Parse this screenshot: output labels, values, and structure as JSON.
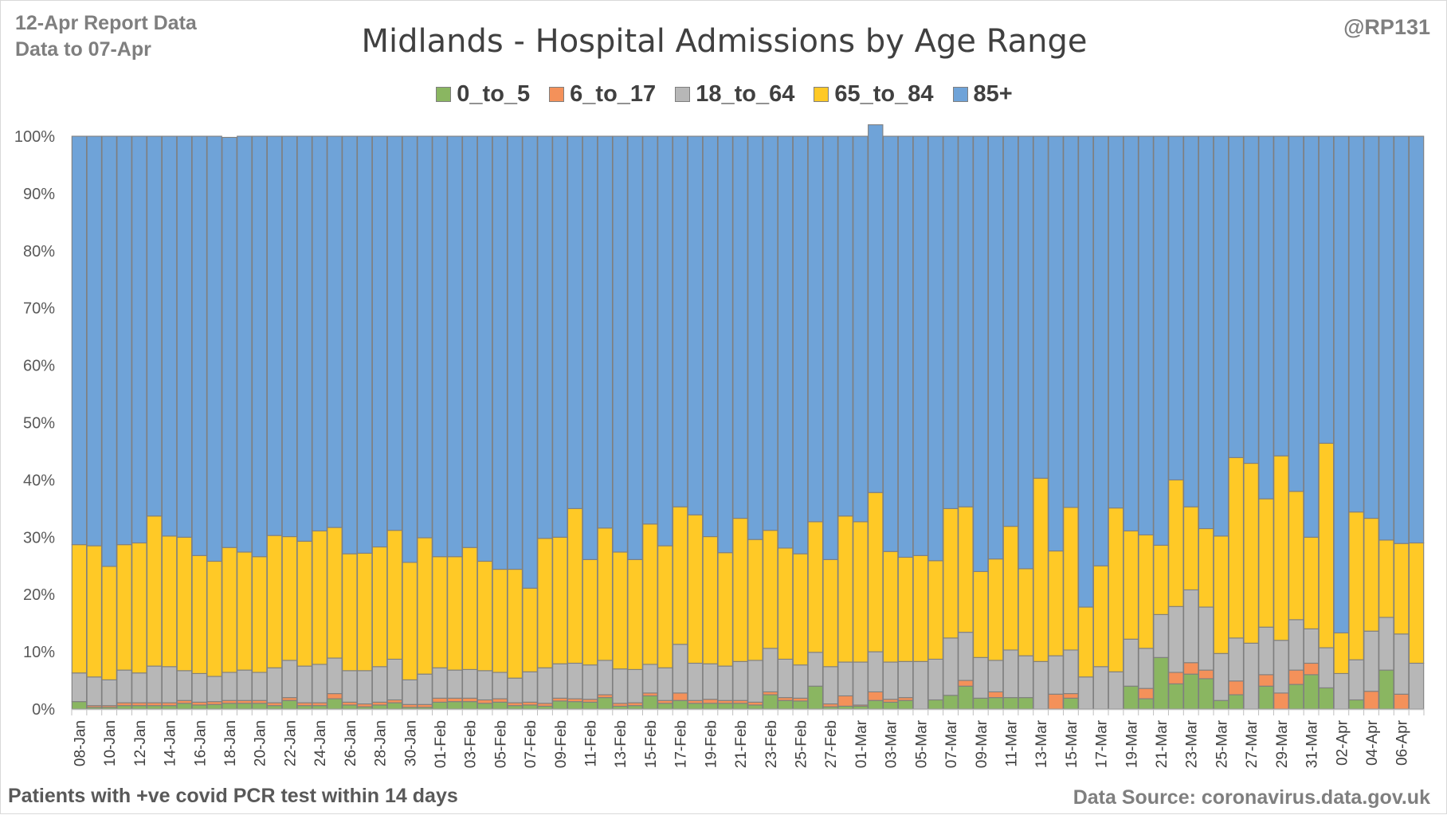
{
  "header": {
    "report_line1": "12-Apr Report Data",
    "report_line2": "Data to 07-Apr",
    "handle": "@RP131"
  },
  "footer": {
    "note": "Patients with  +ve covid PCR test within 14 days",
    "source": "Data Source: coronavirus.data.gov.uk"
  },
  "chart_data": {
    "type": "bar",
    "stacked": true,
    "percent_stacked": true,
    "title": "Midlands - Hospital Admissions by Age Range",
    "xlabel": "",
    "ylabel": "",
    "ylim": [
      0,
      100
    ],
    "y_ticks": [
      "0%",
      "10%",
      "20%",
      "30%",
      "40%",
      "50%",
      "60%",
      "70%",
      "80%",
      "90%",
      "100%"
    ],
    "grid": false,
    "legend_position": "top",
    "colors": {
      "0_to_5": "#8ab661",
      "6_to_17": "#f4915a",
      "18_to_64": "#b7b7b7",
      "65_to_84": "#ffc926",
      "85+": "#6fa3d8"
    },
    "categories": [
      "08-Jan",
      "09-Jan",
      "10-Jan",
      "11-Jan",
      "12-Jan",
      "13-Jan",
      "14-Jan",
      "15-Jan",
      "16-Jan",
      "17-Jan",
      "18-Jan",
      "19-Jan",
      "20-Jan",
      "21-Jan",
      "22-Jan",
      "23-Jan",
      "24-Jan",
      "25-Jan",
      "26-Jan",
      "27-Jan",
      "28-Jan",
      "29-Jan",
      "30-Jan",
      "31-Jan",
      "01-Feb",
      "02-Feb",
      "03-Feb",
      "04-Feb",
      "05-Feb",
      "06-Feb",
      "07-Feb",
      "08-Feb",
      "09-Feb",
      "10-Feb",
      "11-Feb",
      "12-Feb",
      "13-Feb",
      "14-Feb",
      "15-Feb",
      "16-Feb",
      "17-Feb",
      "18-Feb",
      "19-Feb",
      "20-Feb",
      "21-Feb",
      "22-Feb",
      "23-Feb",
      "24-Feb",
      "25-Feb",
      "26-Feb",
      "27-Feb",
      "28-Feb",
      "01-Mar",
      "02-Mar",
      "03-Mar",
      "04-Mar",
      "05-Mar",
      "06-Mar",
      "07-Mar",
      "08-Mar",
      "09-Mar",
      "10-Mar",
      "11-Mar",
      "12-Mar",
      "13-Mar",
      "14-Mar",
      "15-Mar",
      "16-Mar",
      "17-Mar",
      "18-Mar",
      "19-Mar",
      "20-Mar",
      "21-Mar",
      "22-Mar",
      "23-Mar",
      "24-Mar",
      "25-Mar",
      "26-Mar",
      "27-Mar",
      "28-Mar",
      "29-Mar",
      "30-Mar",
      "31-Mar",
      "01-Apr",
      "02-Apr",
      "03-Apr",
      "04-Apr",
      "05-Apr",
      "06-Apr",
      "07-Apr"
    ],
    "x_tick_labels": [
      "08-Jan",
      "10-Jan",
      "12-Jan",
      "14-Jan",
      "16-Jan",
      "18-Jan",
      "20-Jan",
      "22-Jan",
      "24-Jan",
      "26-Jan",
      "28-Jan",
      "30-Jan",
      "01-Feb",
      "03-Feb",
      "05-Feb",
      "07-Feb",
      "09-Feb",
      "11-Feb",
      "13-Feb",
      "15-Feb",
      "17-Feb",
      "19-Feb",
      "21-Feb",
      "23-Feb",
      "25-Feb",
      "27-Feb",
      "01-Mar",
      "03-Mar",
      "05-Mar",
      "07-Mar",
      "09-Mar",
      "11-Mar",
      "13-Mar",
      "15-Mar",
      "17-Mar",
      "19-Mar",
      "21-Mar",
      "23-Mar",
      "25-Mar",
      "27-Mar",
      "29-Mar",
      "31-Mar",
      "02-Apr",
      "04-Apr",
      "06-Apr"
    ],
    "series": [
      {
        "name": "0_to_5",
        "values": [
          1.3,
          0.3,
          0.3,
          0.6,
          0.6,
          0.6,
          0.6,
          1.0,
          0.7,
          0.8,
          1.0,
          1.0,
          1.0,
          0.6,
          1.5,
          0.6,
          0.6,
          1.8,
          0.7,
          0.4,
          0.7,
          1.1,
          0.3,
          0.3,
          1.2,
          1.3,
          1.3,
          1.0,
          1.2,
          0.6,
          0.7,
          0.5,
          1.4,
          1.3,
          1.2,
          2.0,
          0.5,
          0.6,
          2.3,
          1.0,
          1.5,
          1.0,
          1.0,
          1.0,
          1.0,
          0.7,
          2.5,
          1.5,
          1.4,
          4.0,
          0.4,
          0.5,
          0.5,
          1.5,
          1.2,
          1.5,
          0,
          1.6,
          2.4,
          4.0,
          1.9,
          2.0,
          2.0,
          2.0,
          0,
          0,
          1.9,
          0,
          0,
          0,
          4.0,
          1.8,
          9.0,
          4.4,
          6.1,
          5.3,
          1.5,
          2.5,
          0,
          4.0,
          0,
          4.3,
          6.0,
          3.7,
          0,
          1.6,
          0,
          6.8,
          0,
          0
        ]
      },
      {
        "name": "6_to_17",
        "values": [
          0,
          0.3,
          0.3,
          0.5,
          0.5,
          0.5,
          0.5,
          0.5,
          0.5,
          0.5,
          0.5,
          0.5,
          0.5,
          0.5,
          0.5,
          0.5,
          0.5,
          0.9,
          0.5,
          0.5,
          0.5,
          0.5,
          0.5,
          0.5,
          0.7,
          0.6,
          0.6,
          0.6,
          0.6,
          0.5,
          0.5,
          0.5,
          0.5,
          0.5,
          0.5,
          0.5,
          0.5,
          0.5,
          0.5,
          0.5,
          1.3,
          0.5,
          0.7,
          0.5,
          0.5,
          0.5,
          0.5,
          0.5,
          0.5,
          0,
          0.5,
          1.8,
          0.2,
          1.5,
          0.5,
          0.5,
          0,
          0,
          0,
          1.0,
          0,
          1.0,
          0,
          0,
          0,
          2.6,
          0.8,
          0,
          0,
          0,
          0,
          1.8,
          0,
          2.0,
          2.0,
          1.5,
          0,
          2.4,
          0,
          2.0,
          2.8,
          2.5,
          2.0,
          0,
          0,
          0,
          3.1,
          0,
          2.6,
          0
        ]
      },
      {
        "name": "18_to_64",
        "values": [
          5.0,
          5.0,
          4.5,
          5.7,
          5.2,
          6.4,
          6.3,
          5.2,
          5.0,
          4.4,
          4.9,
          5.3,
          4.9,
          6.1,
          6.5,
          6.4,
          6.7,
          6.2,
          5.5,
          5.8,
          6.2,
          7.1,
          4.3,
          5.3,
          5.3,
          4.9,
          5.0,
          5.1,
          4.6,
          4.3,
          5.3,
          6.2,
          6.0,
          6.2,
          6.0,
          6.0,
          6.0,
          5.8,
          5.0,
          5.7,
          8.5,
          6.5,
          6.2,
          6.0,
          6.8,
          7.3,
          7.6,
          6.7,
          5.8,
          5.9,
          6.5,
          5.9,
          7.5,
          7.0,
          6.5,
          6.3,
          8.3,
          7.1,
          10.0,
          8.4,
          7.1,
          5.5,
          8.3,
          7.3,
          8.3,
          6.7,
          7.6,
          5.6,
          7.4,
          6.5,
          8.2,
          7.0,
          7.5,
          11.5,
          12.7,
          11.0,
          8.2,
          7.5,
          11.5,
          8.3,
          9.2,
          8.8,
          6.0,
          7.0,
          6.2,
          7.0,
          10.5,
          9.2,
          10.5,
          8.0
        ]
      },
      {
        "name": "65_to_84",
        "values": [
          22.4,
          22.9,
          19.8,
          21.9,
          22.7,
          26.2,
          22.8,
          23.3,
          20.6,
          20.1,
          21.8,
          20.6,
          20.2,
          23.1,
          21.6,
          21.8,
          23.3,
          22.8,
          20.4,
          20.5,
          20.9,
          22.5,
          20.5,
          23.8,
          19.4,
          19.8,
          21.3,
          19.1,
          18.0,
          19.0,
          14.6,
          22.6,
          22.1,
          27.0,
          18.4,
          23.1,
          20.4,
          19.2,
          24.5,
          21.3,
          24.0,
          25.9,
          22.2,
          19.8,
          25.0,
          21.1,
          20.6,
          19.4,
          19.4,
          22.8,
          18.7,
          25.5,
          24.5,
          27.8,
          19.3,
          18.2,
          18.5,
          17.2,
          22.6,
          21.9,
          15.0,
          17.7,
          21.6,
          15.2,
          32.0,
          18.3,
          24.9,
          12.2,
          17.6,
          28.6,
          18.9,
          19.8,
          12.1,
          22.1,
          14.5,
          13.7,
          20.5,
          31.5,
          31.4,
          22.4,
          32.2,
          22.4,
          16.0,
          35.7,
          7.1,
          25.8,
          19.7,
          13.5,
          15.8,
          21.0
        ]
      },
      {
        "name": "85+",
        "values": [
          71.3,
          71.5,
          75.1,
          71.3,
          71.0,
          66.3,
          69.8,
          70.0,
          73.2,
          74.2,
          71.6,
          72.6,
          73.4,
          69.7,
          69.9,
          70.7,
          68.9,
          68.3,
          72.9,
          72.8,
          71.7,
          68.8,
          74.4,
          70.1,
          73.4,
          73.4,
          71.8,
          74.2,
          75.6,
          75.6,
          78.9,
          70.2,
          70.0,
          65.0,
          73.9,
          68.4,
          72.6,
          73.9,
          67.7,
          71.5,
          64.7,
          66.1,
          69.9,
          72.7,
          66.7,
          70.4,
          68.8,
          71.9,
          72.9,
          67.3,
          73.9,
          66.3,
          67.3,
          64.2,
          72.5,
          73.5,
          73.2,
          74.1,
          65.0,
          64.7,
          76.0,
          73.8,
          68.1,
          75.5,
          59.7,
          72.4,
          64.8,
          82.2,
          75.0,
          64.9,
          68.9,
          69.6,
          71.4,
          60.0,
          64.7,
          68.5,
          69.8,
          56.1,
          57.1,
          63.3,
          55.8,
          62.0,
          70.0,
          53.6,
          86.7,
          65.6,
          66.7,
          70.5,
          71.1,
          71.0
        ]
      }
    ]
  }
}
